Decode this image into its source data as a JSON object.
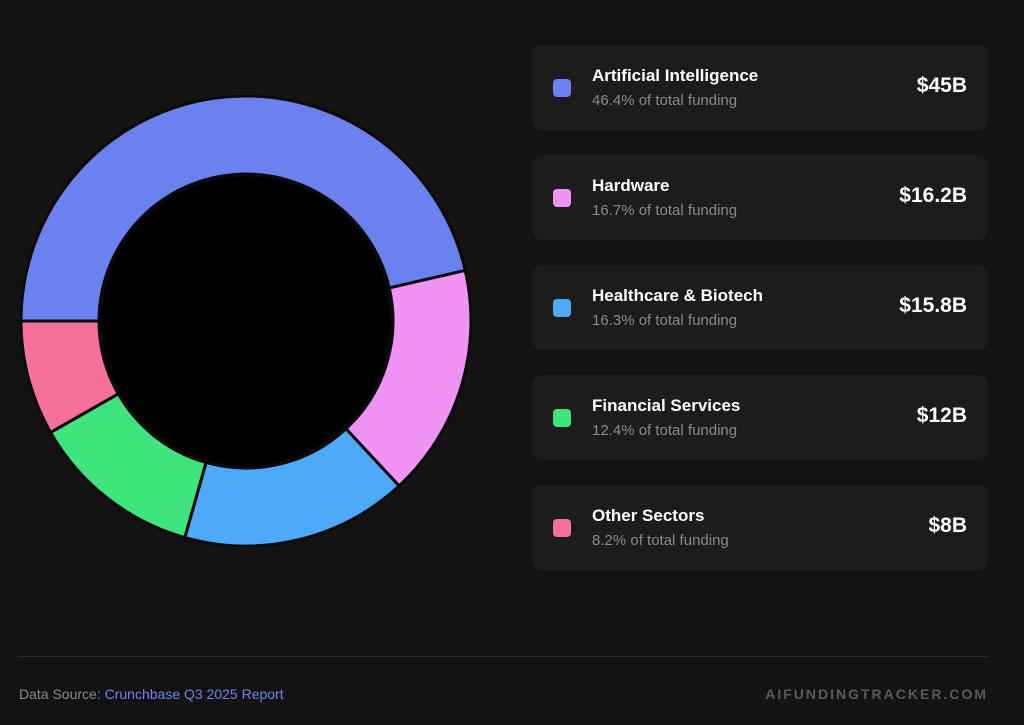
{
  "chart_data": {
    "type": "pie",
    "variant": "donut",
    "currency_unit": "$B",
    "series": [
      {
        "name": "Artificial Intelligence",
        "value": 45,
        "display": "$45B",
        "share_label": "46.4% of total funding",
        "color": "#6b82ee"
      },
      {
        "name": "Hardware",
        "value": 16.2,
        "display": "$16.2B",
        "share_label": "16.7% of total funding",
        "color": "#f093f5"
      },
      {
        "name": "Healthcare & Biotech",
        "value": 15.8,
        "display": "$15.8B",
        "share_label": "16.3% of total funding",
        "color": "#4eaaf8"
      },
      {
        "name": "Financial Services",
        "value": 12,
        "display": "$12B",
        "share_label": "12.4% of total funding",
        "color": "#40e47c"
      },
      {
        "name": "Other Sectors",
        "value": 8,
        "display": "$8B",
        "share_label": "8.2% of total funding",
        "color": "#f6719a"
      }
    ],
    "start_direction": "left",
    "legend_position": "right"
  },
  "footer": {
    "source_prefix": "Data Source:",
    "source_link": "Crunchbase Q3 2025 Report",
    "brand": "AIFUNDINGTRACKER.COM"
  }
}
